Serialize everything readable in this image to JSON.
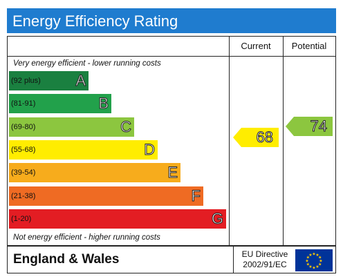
{
  "header": {
    "title": "Energy Efficiency Rating"
  },
  "columns": {
    "current": "Current",
    "potential": "Potential"
  },
  "notes": {
    "top": "Very energy efficient - lower running costs",
    "bottom": "Not energy efficient - higher running costs"
  },
  "bands": [
    {
      "range": "(92 plus)",
      "letter": "A",
      "color": "#1a8040"
    },
    {
      "range": "(81-91)",
      "letter": "B",
      "color": "#22a14b"
    },
    {
      "range": "(69-80)",
      "letter": "C",
      "color": "#8cc63f"
    },
    {
      "range": "(55-68)",
      "letter": "D",
      "color": "#ffed00"
    },
    {
      "range": "(39-54)",
      "letter": "E",
      "color": "#f7ac1c"
    },
    {
      "range": "(21-38)",
      "letter": "F",
      "color": "#ef6b23"
    },
    {
      "range": "(1-20)",
      "letter": "G",
      "color": "#e31d23"
    }
  ],
  "ratings": {
    "current": {
      "value": "68",
      "color": "#ffed00"
    },
    "potential": {
      "value": "74",
      "color": "#8cc63f"
    }
  },
  "footer": {
    "region": "England & Wales",
    "directive_line1": "EU Directive",
    "directive_line2": "2002/91/EC",
    "flag_color": "#003399",
    "star_color": "#ffcc00"
  }
}
